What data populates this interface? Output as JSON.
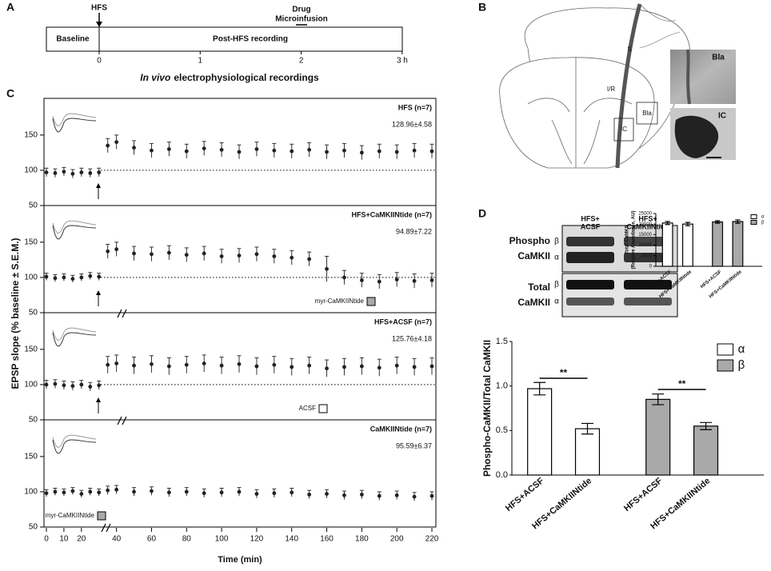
{
  "panel_labels": [
    "A",
    "B",
    "C",
    "D"
  ],
  "timeline": {
    "hfs": "HFS",
    "drug": "Drug",
    "microinfusion": "Microinfusion",
    "baseline": "Baseline",
    "post": "Post-HFS recording",
    "ticks": [
      0,
      1,
      2,
      {
        "value": 3,
        "label": "3 h"
      }
    ],
    "caption_italic": "In vivo",
    "caption": "electrophysiological recordings"
  },
  "brain": {
    "labels": [
      "S",
      "I/R",
      "IC",
      "Bla"
    ],
    "photo_labels": [
      "Bla",
      "IC"
    ]
  },
  "blot": {
    "columns": [
      [
        "HFS+",
        "ACSF"
      ],
      [
        "HFS+",
        "CaMKIINtide"
      ]
    ],
    "rows": [
      [
        "Phospho",
        "CaMKII"
      ],
      [
        "Total",
        "CaMKII"
      ]
    ],
    "bands": [
      "β",
      "α"
    ]
  },
  "axes_c": {
    "ylabel": "EPSP slope (% baseline ± S.E.M.)",
    "xlabel": "Time (min)"
  },
  "chart_data": [
    {
      "type": "scatter",
      "title": "HFS (n=7)",
      "annotation": "128.96±4.58",
      "reference": 100,
      "x": [
        0,
        5,
        10,
        15,
        20,
        25,
        30,
        35,
        40,
        50,
        60,
        70,
        80,
        90,
        100,
        110,
        120,
        130,
        140,
        150,
        160,
        170,
        180,
        190,
        200,
        210,
        220
      ],
      "values": [
        97,
        96,
        98,
        95,
        97,
        96,
        97,
        135,
        140,
        132,
        128,
        130,
        127,
        131,
        129,
        126,
        130,
        128,
        127,
        129,
        126,
        128,
        125,
        127,
        126,
        128,
        127
      ],
      "errors": [
        6,
        6,
        6,
        6,
        6,
        6,
        6,
        10,
        10,
        10,
        10,
        10,
        10,
        10,
        10,
        10,
        10,
        10,
        10,
        10,
        10,
        10,
        10,
        10,
        10,
        10,
        10
      ],
      "ylim": [
        50,
        202
      ],
      "yticks": [
        50,
        100,
        150
      ]
    },
    {
      "type": "scatter",
      "title": "HFS+CaMKIINtide (n=7)",
      "annotation": "94.89±7.22",
      "reference": 100,
      "drug_label": "myr-CaMKIINtide",
      "x": [
        0,
        5,
        10,
        15,
        20,
        25,
        30,
        35,
        40,
        50,
        60,
        70,
        80,
        90,
        100,
        110,
        120,
        130,
        140,
        150,
        160,
        170,
        180,
        190,
        200,
        210,
        220
      ],
      "values": [
        101,
        99,
        100,
        98,
        100,
        102,
        101,
        137,
        140,
        134,
        133,
        135,
        132,
        134,
        130,
        131,
        133,
        130,
        128,
        126,
        112,
        100,
        96,
        94,
        97,
        95,
        96
      ],
      "errors": [
        5,
        5,
        5,
        5,
        5,
        5,
        5,
        10,
        10,
        10,
        10,
        10,
        10,
        10,
        10,
        10,
        10,
        10,
        10,
        10,
        18,
        10,
        10,
        10,
        10,
        10,
        10
      ],
      "ylim": [
        50,
        202
      ],
      "yticks": [
        50,
        100,
        150
      ]
    },
    {
      "type": "scatter",
      "title": "HFS+ACSF (n=7)",
      "annotation": "125.76±4.18",
      "reference": 100,
      "drug_label": "ACSF",
      "x": [
        0,
        5,
        10,
        15,
        20,
        25,
        30,
        35,
        40,
        50,
        60,
        70,
        80,
        90,
        100,
        110,
        120,
        130,
        140,
        150,
        160,
        170,
        180,
        190,
        200,
        210,
        220
      ],
      "values": [
        100,
        101,
        99,
        98,
        100,
        97,
        99,
        128,
        130,
        127,
        129,
        126,
        128,
        130,
        127,
        129,
        126,
        128,
        125,
        127,
        123,
        125,
        126,
        124,
        127,
        125,
        126
      ],
      "errors": [
        6,
        6,
        6,
        6,
        6,
        6,
        6,
        12,
        12,
        12,
        12,
        12,
        12,
        12,
        12,
        12,
        12,
        12,
        12,
        12,
        12,
        12,
        12,
        12,
        12,
        12,
        12
      ],
      "ylim": [
        50,
        202
      ],
      "yticks": [
        50,
        100,
        150
      ]
    },
    {
      "type": "scatter",
      "title": "CaMKIINtide (n=7)",
      "annotation": "95.59±6.37",
      "drug_label": "myr-CaMKIINtide",
      "x": [
        0,
        5,
        10,
        15,
        20,
        25,
        30,
        35,
        40,
        50,
        60,
        70,
        80,
        90,
        100,
        110,
        120,
        130,
        140,
        150,
        160,
        170,
        180,
        190,
        200,
        210,
        220
      ],
      "values": [
        98,
        100,
        99,
        101,
        97,
        100,
        99,
        102,
        103,
        100,
        101,
        99,
        100,
        98,
        99,
        100,
        97,
        98,
        99,
        96,
        97,
        95,
        96,
        94,
        95,
        93,
        94
      ],
      "errors": [
        5,
        5,
        5,
        5,
        5,
        5,
        5,
        6,
        6,
        6,
        6,
        6,
        6,
        6,
        6,
        6,
        6,
        6,
        6,
        6,
        6,
        6,
        6,
        6,
        6,
        6,
        6
      ],
      "ylim": [
        50,
        202
      ],
      "yticks": [
        50,
        100,
        150
      ],
      "xlim": [
        0,
        220
      ],
      "xticks": [
        0,
        10,
        20,
        40,
        60,
        80,
        100,
        120,
        140,
        160,
        180,
        200,
        220
      ]
    },
    {
      "type": "bar",
      "ylabel": [
        "Total CaMKII",
        "(Relative Abundance, AU)"
      ],
      "categories": [
        "HFS+ACSF",
        "HFS+CaMKIINtide",
        "HFS+ACSF",
        "HFS+CaMKIINtide"
      ],
      "series": [
        {
          "name": "α",
          "color": "#ffffff",
          "values": [
            20500,
            20000,
            null,
            null
          ],
          "errors": [
            700,
            800,
            null,
            null
          ]
        },
        {
          "name": "β",
          "color": "#a9a9a9",
          "values": [
            null,
            null,
            21000,
            21200
          ],
          "errors": [
            null,
            null,
            600,
            800
          ]
        }
      ],
      "ylim": [
        0,
        25000
      ],
      "yticks": [
        0,
        5000,
        10000,
        15000,
        20000,
        25000
      ]
    },
    {
      "type": "bar",
      "ylabel": [
        "Phospho-CaMKII/Total CaMKII"
      ],
      "categories": [
        "HFS+ACSF",
        "HFS+CaMKIINtide",
        "HFS+ACSF",
        "HFS+CaMKIINtide"
      ],
      "series": [
        {
          "name": "α",
          "color": "#ffffff",
          "values": [
            0.97,
            0.52,
            null,
            null
          ],
          "errors": [
            0.07,
            0.06,
            null,
            null
          ]
        },
        {
          "name": "β",
          "color": "#a9a9a9",
          "values": [
            null,
            null,
            0.85,
            0.55
          ],
          "errors": [
            null,
            null,
            0.06,
            0.04
          ]
        }
      ],
      "significance": [
        "**",
        "**"
      ],
      "ylim": [
        0,
        1.5
      ],
      "yticks": [
        {
          "value": 0,
          "label": "0.0"
        },
        {
          "value": 0.5,
          "label": "0.5"
        },
        {
          "value": 1,
          "label": "1.0"
        },
        {
          "value": 1.5,
          "label": "1.5"
        }
      ]
    }
  ]
}
